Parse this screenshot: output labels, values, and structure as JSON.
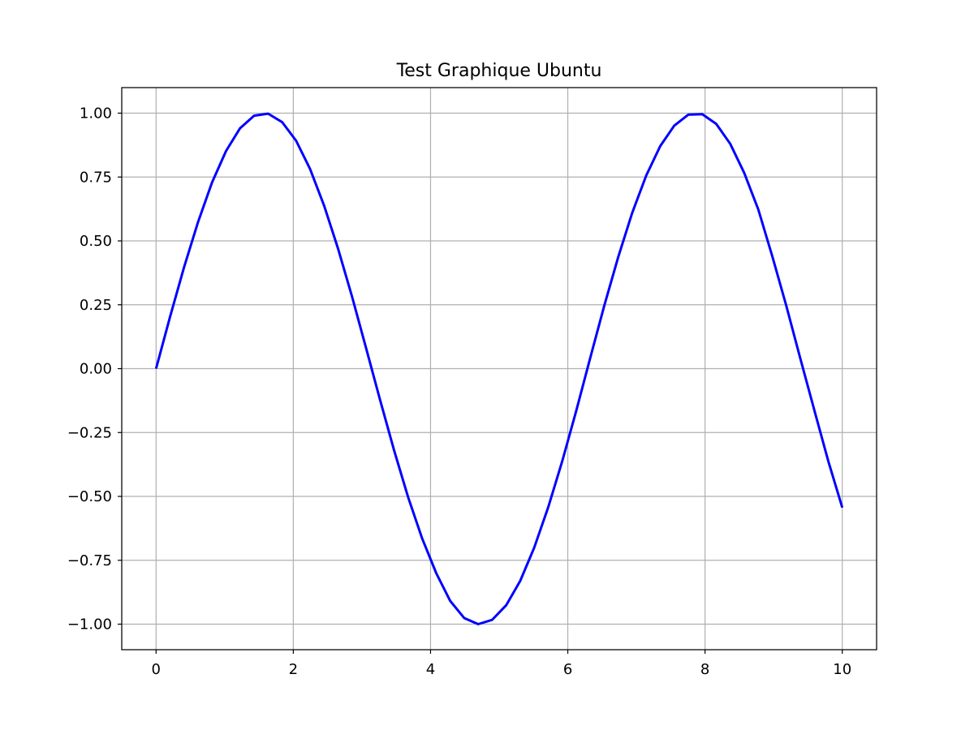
{
  "chart_data": {
    "type": "line",
    "title": "Test Graphique Ubuntu",
    "xlabel": "",
    "ylabel": "",
    "xlim": [
      -0.5,
      10.5
    ],
    "ylim": [
      -1.1,
      1.1
    ],
    "grid": true,
    "legend": "none",
    "x_ticks": [
      0,
      2,
      4,
      6,
      8,
      10
    ],
    "x_tick_labels": [
      "0",
      "2",
      "4",
      "6",
      "8",
      "10"
    ],
    "y_ticks": [
      1.0,
      0.75,
      0.5,
      0.25,
      0.0,
      -0.25,
      -0.5,
      -0.75,
      -1.0
    ],
    "y_tick_labels": [
      "1.00",
      "0.75",
      "0.50",
      "0.25",
      "0.00",
      "−0.25",
      "−0.50",
      "−0.75",
      "−1.00"
    ],
    "colors": {
      "line": "#0000ff",
      "grid": "#b0b0b0",
      "axes": "#000000",
      "background": "#ffffff"
    },
    "series": [
      {
        "x": [
          0,
          0.204,
          0.408,
          0.612,
          0.816,
          1.02,
          1.224,
          1.429,
          1.633,
          1.837,
          2.041,
          2.245,
          2.449,
          2.653,
          2.857,
          3.061,
          3.265,
          3.469,
          3.673,
          3.878,
          4.082,
          4.286,
          4.49,
          4.694,
          4.898,
          5.102,
          5.306,
          5.51,
          5.714,
          5.918,
          6.122,
          6.327,
          6.531,
          6.735,
          6.939,
          7.143,
          7.347,
          7.551,
          7.755,
          7.959,
          8.163,
          8.367,
          8.571,
          8.776,
          8.98,
          9.184,
          9.388,
          9.592,
          9.796,
          10.0
        ],
        "y": [
          0.0,
          0.203,
          0.397,
          0.574,
          0.729,
          0.852,
          0.941,
          0.99,
          0.998,
          0.965,
          0.892,
          0.781,
          0.638,
          0.469,
          0.281,
          0.08,
          -0.123,
          -0.32,
          -0.503,
          -0.665,
          -0.8,
          -0.909,
          -0.976,
          -1.0,
          -0.983,
          -0.926,
          -0.831,
          -0.701,
          -0.543,
          -0.363,
          -0.166,
          0.042,
          0.246,
          0.437,
          0.61,
          0.756,
          0.871,
          0.951,
          0.994,
          0.996,
          0.958,
          0.88,
          0.766,
          0.623,
          0.44,
          0.246,
          0.04,
          -0.162,
          -0.362,
          -0.544
        ]
      }
    ]
  }
}
